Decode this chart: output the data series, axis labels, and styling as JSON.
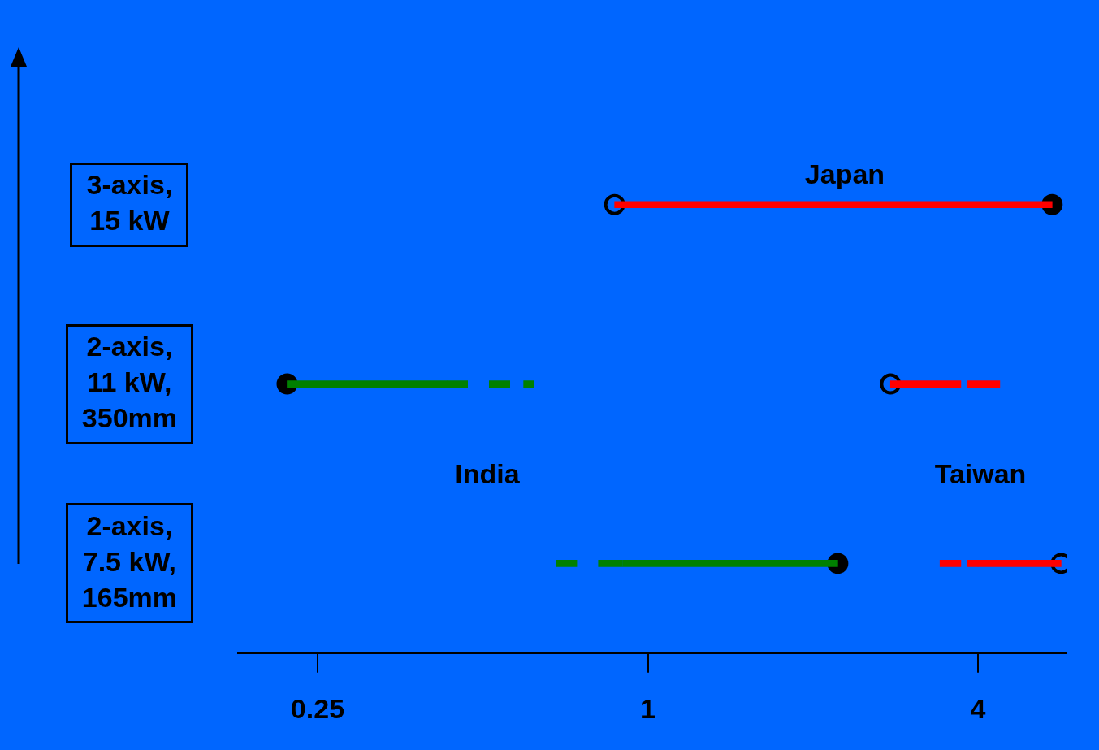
{
  "chart_data": {
    "type": "bar",
    "orientation": "horizontal",
    "log": "x",
    "xlim": [
      0.179,
      5.8
    ],
    "xticks": [
      0.25,
      1,
      4
    ],
    "categories": [
      "3-axis, 15 kW",
      "2-axis, 11 kW, 350mm",
      "2-axis, 7.5 kW, 165mm"
    ],
    "grid": false,
    "legend": false,
    "series": [
      {
        "color": "#ff0000",
        "line_style": "solid",
        "base": [
          0.87,
          2.77,
          4.0
        ],
        "values": [
          4.59,
          0.53,
          1.67
        ]
      },
      {
        "color": "#ff0000",
        "line_style": "dashed",
        "base": [
          null,
          3.3,
          3.41
        ],
        "values": [
          null,
          1.09,
          0.59
        ]
      },
      {
        "color": "#008000",
        "line_style": "solid",
        "base": [
          null,
          0.22,
          0.9
        ],
        "values": [
          null,
          0.21,
          1.32
        ]
      },
      {
        "color": "#008000",
        "line_style": "dashed",
        "base": [
          null,
          0.43,
          0.68
        ],
        "values": [
          null,
          0.19,
          0.22
        ]
      },
      {
        "type": "scatter",
        "marker": "circle",
        "color": "#000000",
        "x": [
          "3-axis, 15 kW",
          "2-axis, 11 kW, 350mm",
          "2-axis, 7.5 kW, 165mm"
        ],
        "values": [
          5.46,
          0.22,
          2.22
        ]
      },
      {
        "type": "scatter",
        "marker": "circle",
        "color": "#0066ff",
        "x": [
          "3-axis, 15 kW",
          "2-axis, 11 kW, 350mm",
          "2-axis, 7.5 kW, 165mm"
        ],
        "values": [
          0.87,
          2.77,
          5.67
        ]
      }
    ],
    "annotations": [
      "Japan",
      "India",
      "Taiwan"
    ]
  }
}
